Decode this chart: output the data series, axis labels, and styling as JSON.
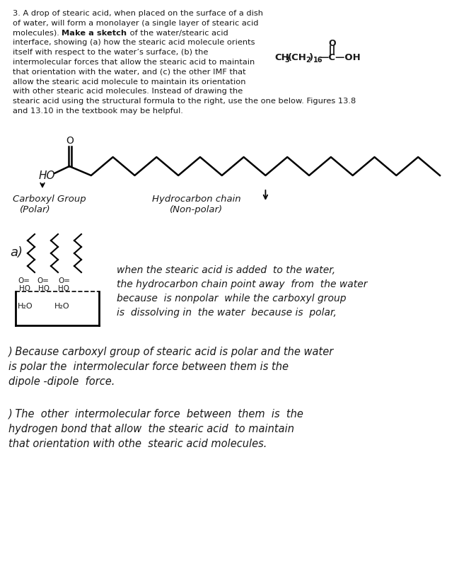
{
  "bg_color": "#ffffff",
  "text_color": "#1a1a1a",
  "problem_text": [
    [
      "3. A drop of stearic acid, when placed on the surface of a dish",
      false
    ],
    [
      "of water, will form a monolayer (a single layer of stearic acid",
      false
    ],
    [
      "molecules). ",
      false,
      "Make a sketch",
      true,
      " of the water/stearic acid",
      false
    ],
    [
      "interface, showing (a) how the stearic acid molecule orients",
      false
    ],
    [
      "itself with respect to the water’s surface, (b) the",
      false
    ],
    [
      "intermolecular forces that allow the stearic acid to maintain",
      false
    ],
    [
      "that orientation with the water, and (c) the other IMF that",
      false
    ],
    [
      "allow the stearic acid molecule to maintain its orientation",
      false
    ],
    [
      "with other stearic acid molecules. Instead of drawing the",
      false
    ],
    [
      "stearic acid using the structural formula to the right, use the one below. Figures 13.8",
      false
    ],
    [
      "and 13.10 in the textbook may be helpful.",
      false
    ]
  ],
  "answer_a_lines": [
    "when the stearic acid is added  to the water,",
    "the hydrocarbon chain point away  from  the water",
    "because  is nonpolar  while the carboxyl group",
    "is  dissolving in  the water  because is  polar,"
  ],
  "answer_b_lines": [
    ") Because carboxyl group of stearic acid is polar and the water",
    "is polar the  intermolecular force between them is the",
    "dipole -dipole  force."
  ],
  "answer_c_lines": [
    ") The  other  intermolecular force  between  them  is  the",
    "hydrogen bond that allow  the stearic acid  to maintain",
    "that orientation with othe  stearic acid molecules."
  ]
}
